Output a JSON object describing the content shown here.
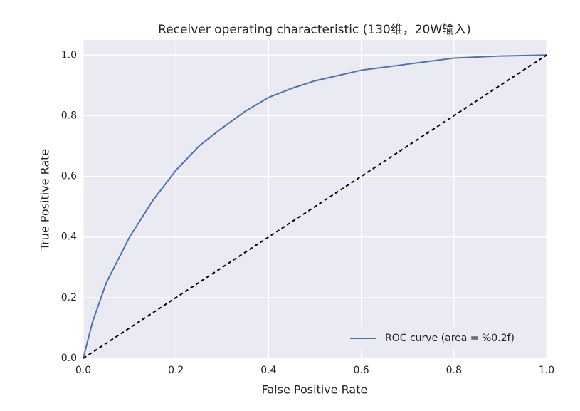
{
  "chart_data": {
    "type": "line",
    "title": "Receiver operating characteristic (130维，20W输入)",
    "xlabel": "False Positive Rate",
    "ylabel": "True Positive Rate",
    "series": [
      {
        "name": "ROC curve (area = %0.2f)",
        "color": "#4c72b0",
        "x": [
          0,
          0.02,
          0.05,
          0.1,
          0.15,
          0.2,
          0.25,
          0.3,
          0.35,
          0.4,
          0.45,
          0.5,
          0.6,
          0.7,
          0.8,
          0.9,
          1
        ],
        "values": [
          0,
          0.12,
          0.25,
          0.4,
          0.52,
          0.62,
          0.7,
          0.76,
          0.815,
          0.86,
          0.89,
          0.915,
          0.95,
          0.97,
          0.99,
          0.997,
          1
        ]
      },
      {
        "color": "#000000",
        "dashed": true,
        "x": [
          0,
          1
        ],
        "values": [
          0,
          1
        ]
      }
    ],
    "xlim": [
      0,
      1
    ],
    "ylim": [
      0,
      1.05
    ],
    "xticks": [
      {
        "value": 0,
        "label": "0.0"
      },
      0.2,
      0.4,
      0.6,
      0.8,
      {
        "value": 1,
        "label": "1.0"
      }
    ],
    "yticks": [
      {
        "value": 0,
        "label": "0.0"
      },
      0.2,
      0.4,
      0.6,
      0.8,
      {
        "value": 1,
        "label": "1.0"
      }
    ],
    "grid": true,
    "legend": "lower right"
  }
}
